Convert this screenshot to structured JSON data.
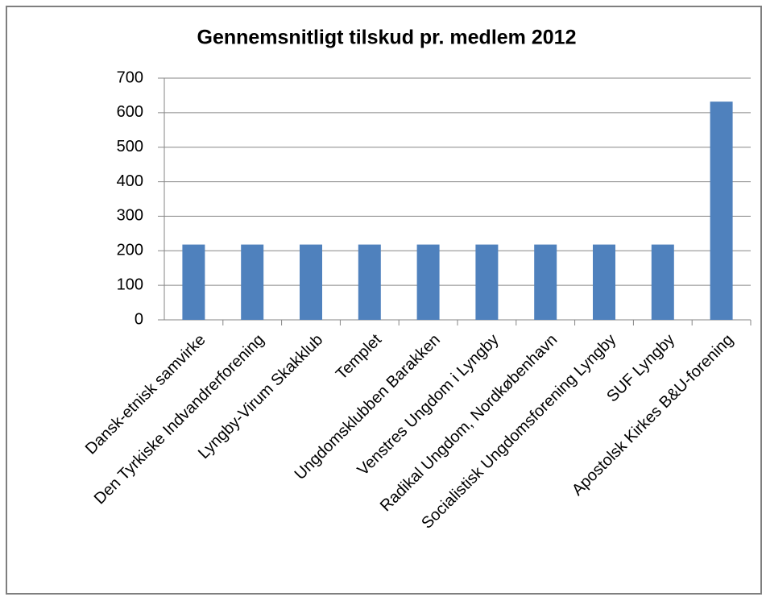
{
  "chart_data": {
    "type": "bar",
    "title": "Gennemsnitligt tilskud pr. medlem 2012",
    "categories": [
      "Dansk-etnisk samvirke",
      "Den Tyrkiske Indvandrerforening",
      "Lyngby-Virum Skakklub",
      "Templet",
      "Ungdomsklubben Barakken",
      "Venstres Ungdom i Lyngby",
      "Radikal Ungdom, Nordkøbenhavn",
      "Socialistisk Ungdomsforening Lyngby",
      "SUF Lyngby",
      "Apostolsk Kirkes B&U-forening"
    ],
    "values": [
      218,
      218,
      218,
      218,
      218,
      218,
      218,
      218,
      218,
      632
    ],
    "color": "#4f81bd",
    "ylim": [
      0,
      700
    ],
    "yticks": [
      0,
      100,
      200,
      300,
      400,
      500,
      600,
      700
    ],
    "grid": true
  }
}
